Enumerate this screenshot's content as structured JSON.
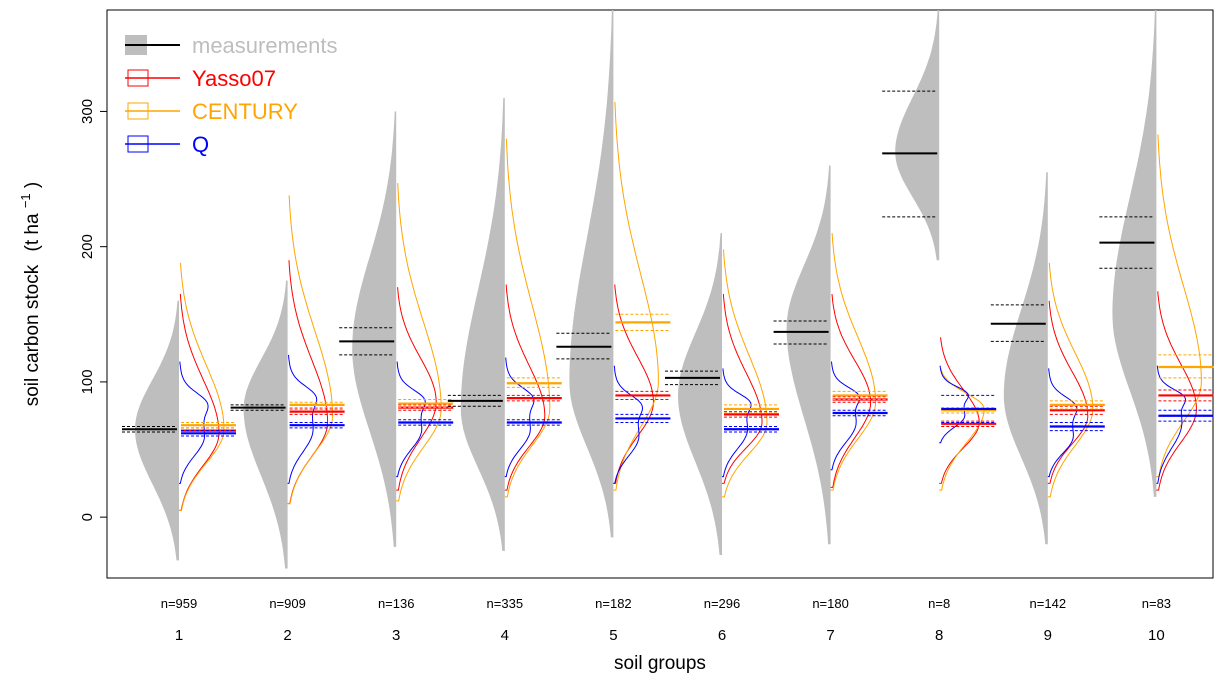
{
  "chart_data": {
    "type": "violin",
    "xlabel": "soil groups",
    "ylabel": "soil carbon stock",
    "ylabel_unit_base": "(t ha",
    "ylabel_unit_exp": "−1",
    "ylabel_unit_close": ")",
    "ylim": [
      -45,
      375
    ],
    "yticks": [
      0,
      100,
      200,
      300
    ],
    "ytick_labels": [
      "0",
      "100",
      "200",
      "300"
    ],
    "categories": [
      "1",
      "2",
      "3",
      "4",
      "5",
      "6",
      "7",
      "8",
      "9",
      "10"
    ],
    "n_labels": [
      "n=959",
      "n=909",
      "n=136",
      "n=335",
      "n=182",
      "n=296",
      "n=180",
      "n=8",
      "n=142",
      "n=83"
    ],
    "legend": {
      "placement": "top-left",
      "entries": [
        {
          "key": "measurements",
          "label": "measurements",
          "color": "#bebebe",
          "style": "filled"
        },
        {
          "key": "yasso",
          "label": "Yasso07",
          "color": "#ff0000",
          "style": "box"
        },
        {
          "key": "century",
          "label": "CENTURY",
          "color": "#ffa500",
          "style": "box"
        },
        {
          "key": "q",
          "label": "Q",
          "color": "#0000ff",
          "style": "box"
        }
      ]
    },
    "colors": {
      "measurements_fill": "#bebebe",
      "measurements_mean": "#000000",
      "yasso": "#ff0000",
      "century": "#ffa500",
      "q": "#0000ff"
    },
    "series": [
      {
        "name": "measurements",
        "mean": [
          65,
          81,
          130,
          86,
          126,
          103,
          137,
          269,
          143,
          203
        ],
        "ci_low": [
          63,
          79,
          120,
          82,
          117,
          98,
          128,
          222,
          130,
          184
        ],
        "ci_high": [
          67,
          83,
          140,
          90,
          136,
          108,
          145,
          315,
          157,
          222
        ],
        "range_min": [
          -32,
          -38,
          -22,
          -25,
          -15,
          -28,
          -20,
          190,
          -20,
          15
        ],
        "range_max": [
          160,
          175,
          300,
          310,
          375,
          210,
          260,
          375,
          255,
          375
        ],
        "mode": [
          65,
          80,
          125,
          80,
          100,
          90,
          140,
          270,
          90,
          150
        ]
      },
      {
        "name": "Yasso07",
        "mean": [
          64,
          78,
          81,
          88,
          90,
          76,
          87,
          69,
          79,
          90
        ],
        "ci_low": [
          62,
          76,
          79,
          86,
          87,
          74,
          85,
          67,
          76,
          86
        ],
        "ci_high": [
          66,
          80,
          83,
          90,
          93,
          78,
          89,
          71,
          82,
          94
        ],
        "range_min": [
          5,
          10,
          20,
          20,
          25,
          25,
          22,
          25,
          25,
          20
        ],
        "range_max": [
          165,
          190,
          170,
          172,
          172,
          165,
          165,
          133,
          160,
          167
        ],
        "mode": [
          62,
          70,
          85,
          75,
          85,
          70,
          85,
          70,
          75,
          80
        ]
      },
      {
        "name": "CENTURY",
        "mean": [
          68,
          83,
          84,
          99,
          144,
          80,
          90,
          79,
          83,
          111
        ],
        "ci_low": [
          66,
          81,
          81,
          96,
          138,
          77,
          87,
          77,
          80,
          103
        ],
        "ci_high": [
          70,
          85,
          87,
          103,
          150,
          83,
          93,
          81,
          86,
          120
        ],
        "range_min": [
          5,
          10,
          12,
          15,
          20,
          15,
          20,
          20,
          15,
          30
        ],
        "range_max": [
          188,
          238,
          247,
          280,
          307,
          198,
          210,
          110,
          188,
          283
        ],
        "mode": [
          65,
          75,
          80,
          80,
          100,
          70,
          85,
          80,
          80,
          100
        ]
      },
      {
        "name": "Q",
        "mean": [
          62,
          68,
          70,
          70,
          73,
          65,
          77,
          80,
          67,
          75
        ],
        "ci_low": [
          60,
          66,
          68,
          68,
          70,
          63,
          75,
          70,
          64,
          71
        ],
        "ci_high": [
          64,
          70,
          72,
          72,
          76,
          67,
          79,
          90,
          70,
          79
        ],
        "range_min": [
          25,
          25,
          30,
          30,
          25,
          30,
          35,
          55,
          30,
          25
        ],
        "range_max": [
          115,
          120,
          115,
          118,
          112,
          110,
          115,
          112,
          110,
          112
        ],
        "mode": [
          60,
          65,
          65,
          65,
          60,
          65,
          70,
          75,
          60,
          70
        ]
      }
    ]
  }
}
